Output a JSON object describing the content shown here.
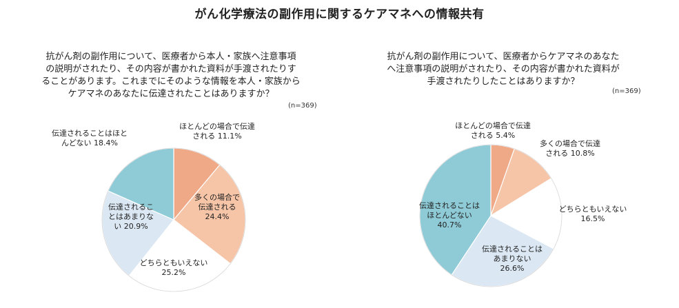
{
  "title": "がん化学療法の副作用に関するケアマネへの情報共有",
  "left": {
    "question_lines": [
      "抗がん剤の副作用について、医療者から本人・家族へ注意事項",
      "の説明がされたり、その内容が書かれた資料が手渡されたりす",
      "ることがあります。これまでにそのような情報を本人・家族から",
      "ケアマネのあなたに伝達されたことはありますか？"
    ],
    "n_label": "(n=369)"
  },
  "right": {
    "question_lines": [
      "抗がん剤の副作用について、医療者からケアマネのあなた",
      "へ注意事項の説明がされたり、その内容が書かれた資料が",
      "手渡されたりしたことはありますか？"
    ],
    "n_label": "(n=369)"
  },
  "chart_data": [
    {
      "type": "pie",
      "title": "抗がん剤の副作用について、医療者から本人・家族へ注意事項の説明がされたり、その内容が書かれた資料が手渡されたりすることがあります。これまでにそのような情報を本人・家族からケアマネのあなたに伝達されたことはありますか？",
      "n": "(n=369)",
      "start": "12 o'clock, clockwise",
      "slices": [
        {
          "label_lines": [
            "ほとんどの場合で伝達",
            "される 11.1%"
          ],
          "value": 11.1,
          "color": "#f0a987"
        },
        {
          "label_lines": [
            "多くの場合で",
            "伝達される",
            "24.4%"
          ],
          "value": 24.4,
          "color": "#f6c5a8"
        },
        {
          "label_lines": [
            "どちらともいえない",
            "25.2%"
          ],
          "value": 25.2,
          "color": "#ffffff"
        },
        {
          "label_lines": [
            "伝達されるこ",
            "とはあまりな",
            "い 20.9%"
          ],
          "value": 20.9,
          "color": "#dbe8f4"
        },
        {
          "label_lines": [
            "伝達されることはほと",
            "んどない 18.4%"
          ],
          "value": 18.4,
          "color": "#8ecbd6"
        }
      ]
    },
    {
      "type": "pie",
      "title": "抗がん剤の副作用について、医療者からケアマネのあなたへ注意事項の説明がされたり、その内容が書かれた資料が手渡されたりしたことはありますか？",
      "n": "(n=369)",
      "start": "12 o'clock, clockwise",
      "slices": [
        {
          "label_lines": [
            "ほとんどの場合で伝達",
            "される 5.4%"
          ],
          "value": 5.4,
          "color": "#f0a987"
        },
        {
          "label_lines": [
            "多くの場合で伝達",
            "される 10.8%"
          ],
          "value": 10.8,
          "color": "#f6c5a8"
        },
        {
          "label_lines": [
            "どちらともいえない",
            "16.5%"
          ],
          "value": 16.5,
          "color": "#ffffff"
        },
        {
          "label_lines": [
            "伝達されることは",
            "あまりない",
            "26.6%"
          ],
          "value": 26.6,
          "color": "#dbe8f4"
        },
        {
          "label_lines": [
            "伝達されることは",
            "ほとんどない",
            "40.7%"
          ],
          "value": 40.7,
          "color": "#8ecbd6"
        }
      ]
    }
  ]
}
